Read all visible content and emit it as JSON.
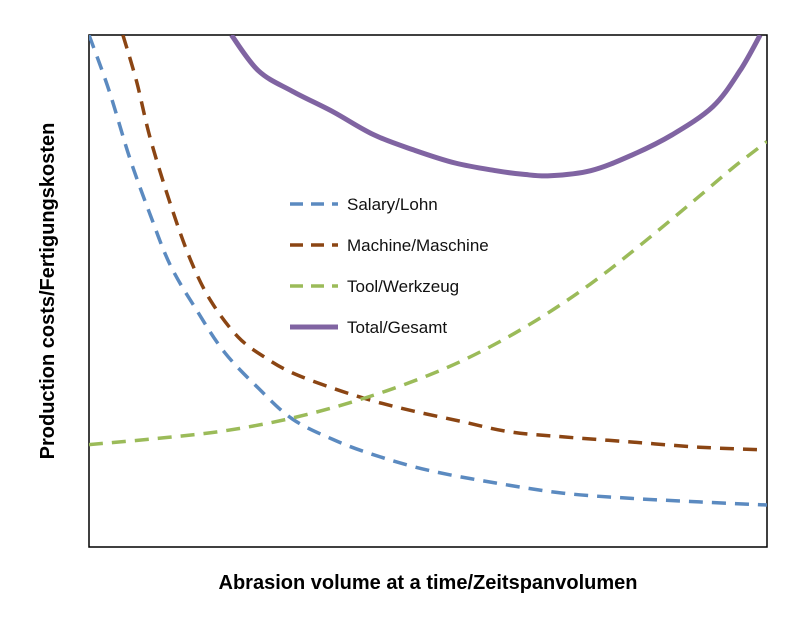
{
  "chart_data": {
    "type": "line",
    "title": "",
    "xlabel": "Abrasion volume at a time/Zeitspanvolumen",
    "ylabel": "Production costs/Fertigungskosten",
    "xlim": [
      0,
      100
    ],
    "ylim": [
      0,
      100
    ],
    "x_ticks_shown": false,
    "y_ticks_shown": false,
    "grid": false,
    "legend": "center",
    "series": [
      {
        "name": "Salary/Lohn",
        "style": "dashed",
        "color": "#5b8ac0",
        "x": [
          0,
          3,
          6,
          9,
          12,
          16,
          20,
          25,
          30,
          36,
          42,
          50,
          60,
          70,
          80,
          90,
          100
        ],
        "y": [
          100,
          89,
          76,
          65,
          55,
          46,
          38,
          31,
          25,
          21,
          18,
          15,
          12.5,
          10.5,
          9.5,
          8.8,
          8.2
        ]
      },
      {
        "name": "Machine/Maschine",
        "style": "dashed",
        "color": "#8b4513",
        "x": [
          5,
          7,
          9,
          12,
          15,
          18,
          22,
          26,
          30,
          36,
          42,
          48,
          55,
          62,
          70,
          80,
          90,
          99
        ],
        "y": [
          100,
          91,
          80,
          67,
          56,
          48,
          41,
          37,
          34,
          31,
          28.5,
          26.5,
          24.5,
          22.5,
          21.5,
          20.5,
          19.5,
          19
        ]
      },
      {
        "name": "Tool/Werkzeug",
        "style": "dashed",
        "color": "#9bbb59",
        "x": [
          0,
          10,
          20,
          30,
          40,
          50,
          58,
          66,
          74,
          82,
          90,
          95,
          100
        ],
        "y": [
          20,
          21.2,
          22.7,
          25.2,
          28.8,
          33.5,
          38.3,
          44.3,
          51.4,
          59.7,
          68.5,
          74.1,
          79.2
        ]
      },
      {
        "name": "Total/Gesamt",
        "style": "solid",
        "color": "#8064a2",
        "x": [
          21,
          25,
          30,
          36,
          42,
          48,
          54,
          60,
          64,
          68,
          74,
          80,
          86,
          92,
          96,
          99
        ],
        "y": [
          100,
          93,
          89,
          85,
          80.5,
          77.5,
          75,
          73.5,
          72.8,
          72.5,
          73.5,
          76.5,
          80.5,
          86,
          93,
          100
        ]
      }
    ]
  }
}
